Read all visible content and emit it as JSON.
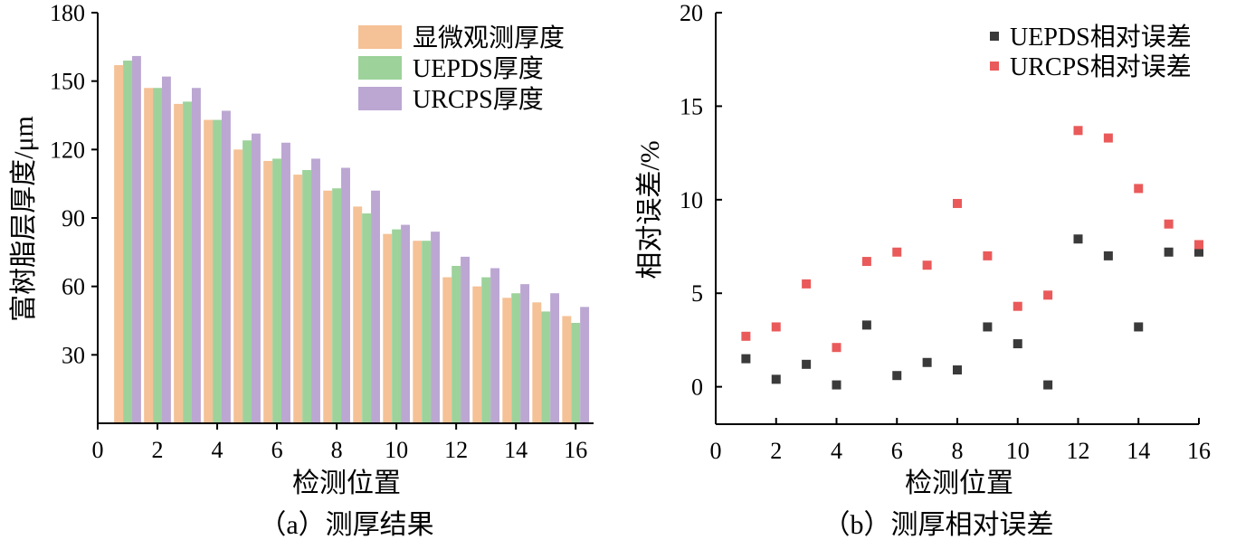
{
  "chart_data": [
    {
      "type": "bar",
      "caption": "（a）测厚结果",
      "xlabel": "检测位置",
      "ylabel": "富树脂层厚度/μm",
      "x": [
        1,
        2,
        3,
        4,
        5,
        6,
        7,
        8,
        9,
        10,
        11,
        12,
        13,
        14,
        15,
        16
      ],
      "xlim": [
        0,
        16.6
      ],
      "ylim": [
        0,
        180
      ],
      "xticks": [
        0,
        2,
        4,
        6,
        8,
        10,
        12,
        14,
        16
      ],
      "yticks": [
        30,
        60,
        90,
        120,
        150,
        180
      ],
      "legend_position": "top-right",
      "grid": false,
      "series": [
        {
          "name": "显微观测厚度",
          "color": "#f5c196",
          "values": [
            157,
            147,
            140,
            133,
            120,
            115,
            109,
            102,
            95,
            83,
            80,
            64,
            60,
            55,
            53,
            47
          ]
        },
        {
          "name": "UEPDS厚度",
          "color": "#9dd29b",
          "values": [
            159,
            147,
            141,
            133,
            124,
            116,
            111,
            103,
            92,
            85,
            80,
            69,
            64,
            57,
            49,
            44
          ]
        },
        {
          "name": "URCPS厚度",
          "color": "#bba7d2",
          "values": [
            161,
            152,
            147,
            137,
            127,
            123,
            116,
            112,
            102,
            87,
            84,
            73,
            68,
            61,
            57,
            51
          ]
        }
      ]
    },
    {
      "type": "scatter",
      "caption": "（b）测厚相对误差",
      "xlabel": "检测位置",
      "ylabel": "相对误差/%",
      "xlim": [
        0,
        16
      ],
      "ylim": [
        -2,
        20
      ],
      "xticks": [
        0,
        2,
        4,
        6,
        8,
        10,
        12,
        14,
        16
      ],
      "yticks": [
        0,
        5,
        10,
        15,
        20
      ],
      "legend_position": "top-right",
      "grid": false,
      "series": [
        {
          "name": "UEPDS相对误差",
          "color": "#3a3a3a",
          "x": [
            1,
            2,
            3,
            4,
            5,
            6,
            7,
            8,
            9,
            10,
            11,
            12,
            13,
            14,
            15,
            16
          ],
          "y": [
            1.5,
            0.4,
            1.2,
            0.1,
            3.3,
            0.6,
            1.3,
            0.9,
            3.2,
            2.3,
            0.1,
            7.9,
            7.0,
            3.2,
            7.2,
            7.2
          ]
        },
        {
          "name": "URCPS相对误差",
          "color": "#ea5a5a",
          "x": [
            1,
            2,
            3,
            4,
            5,
            6,
            7,
            8,
            9,
            10,
            11,
            12,
            13,
            14,
            15,
            16
          ],
          "y": [
            2.7,
            3.2,
            5.5,
            2.1,
            6.7,
            7.2,
            6.5,
            9.8,
            7.0,
            4.3,
            4.9,
            13.7,
            13.3,
            10.6,
            8.7,
            7.6
          ]
        }
      ]
    }
  ]
}
